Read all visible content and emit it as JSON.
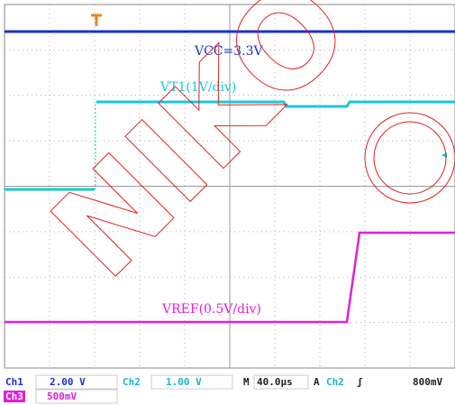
{
  "traces": [
    {
      "label": "VCC=3.3V"
    },
    {
      "label": "VT1(1V/div)"
    },
    {
      "label": "VREF(0.5V/div)"
    }
  ],
  "status": {
    "row1": [
      "Ch1",
      "2.00 V",
      "Ch2",
      "1.00 V",
      "M",
      "40.0µs",
      "A",
      "Ch2",
      "ʃ",
      "800mV"
    ],
    "row2": [
      "Ch3",
      "500mV"
    ]
  },
  "watermark": "NIKO"
}
